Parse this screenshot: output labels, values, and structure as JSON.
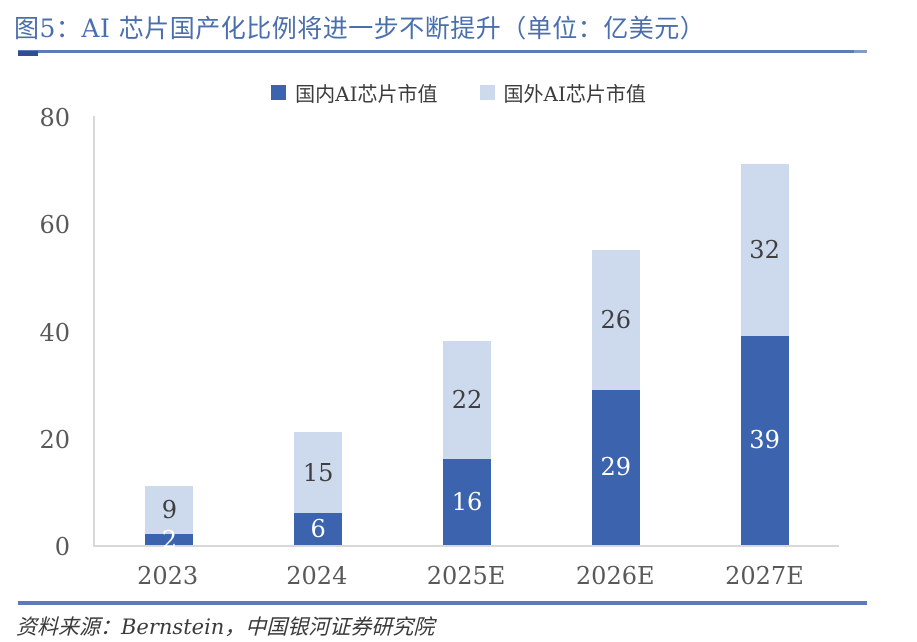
{
  "title": "图5：AI 芯片国产化比例将进一步不断提升（单位：亿美元）",
  "source": "资料来源：Bernstein，中国银河证券研究院",
  "colors": {
    "title_text": "#4a6fae",
    "rule_main": "#5b7cb8",
    "rule_cap": "#2f4f90",
    "rule_tip": "#8399c6",
    "axis_line": "#d8d8d8",
    "tick_text": "#595959",
    "domestic_fill": "#3b63ae",
    "foreign_fill": "#cdd9ec",
    "label_on_dark": "#ffffff",
    "label_on_light": "#3f3f3f"
  },
  "chart_data": {
    "type": "bar",
    "stacked": true,
    "title": "图5：AI 芯片国产化比例将进一步不断提升（单位：亿美元）",
    "categories": [
      "2023",
      "2024",
      "2025E",
      "2026E",
      "2027E"
    ],
    "series": [
      {
        "name": "国内AI芯片市值",
        "color": "#3b63ae",
        "label_color": "#ffffff",
        "values": [
          2,
          6,
          16,
          29,
          39
        ]
      },
      {
        "name": "国外AI芯片市值",
        "color": "#cdd9ec",
        "label_color": "#3f3f3f",
        "values": [
          9,
          15,
          22,
          26,
          32
        ]
      }
    ],
    "totals": [
      11,
      21,
      38,
      55,
      71
    ],
    "ylim": [
      0,
      80
    ],
    "ytick_step": 20,
    "yticks": [
      0,
      20,
      40,
      60,
      80
    ],
    "grid": false,
    "legend_position": "top-center",
    "xlabel": "",
    "ylabel": ""
  }
}
